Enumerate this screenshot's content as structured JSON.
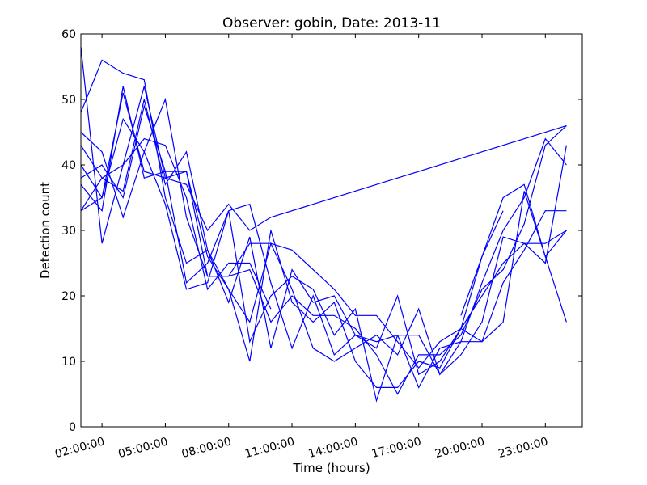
{
  "chart_data": {
    "type": "line",
    "title": "Observer: gobin, Date: 2013-11",
    "xlabel": "Time (hours)",
    "ylabel": "Detection count",
    "xlim": [
      1.0,
      24.75
    ],
    "ylim": [
      0,
      60
    ],
    "x_ticks": [
      {
        "value": 2,
        "label": "02:00:00"
      },
      {
        "value": 5,
        "label": "05:00:00"
      },
      {
        "value": 8,
        "label": "08:00:00"
      },
      {
        "value": 11,
        "label": "11:00:00"
      },
      {
        "value": 14,
        "label": "14:00:00"
      },
      {
        "value": 17,
        "label": "17:00:00"
      },
      {
        "value": 20,
        "label": "20:00:00"
      },
      {
        "value": 23,
        "label": "23:00:00"
      }
    ],
    "y_ticks": [
      0,
      10,
      20,
      30,
      40,
      50,
      60
    ],
    "grid": false,
    "line_color": "#0000ff",
    "series": [
      {
        "x": [
          1,
          2,
          3,
          4,
          5,
          6,
          7,
          8,
          9,
          10,
          11,
          12,
          13,
          14,
          15,
          16,
          17,
          18,
          19,
          20,
          21,
          22,
          23,
          24
        ],
        "y": [
          58,
          28,
          40,
          52,
          38,
          39,
          26,
          21,
          16,
          28,
          21,
          12,
          10,
          12,
          14,
          11,
          18,
          8,
          13,
          22,
          30,
          35,
          44,
          40
        ]
      },
      {
        "x": [
          1,
          2,
          3,
          4,
          5,
          6,
          7,
          8,
          9,
          10,
          11,
          12,
          13,
          14,
          15,
          16,
          17,
          18,
          19,
          20,
          21,
          22,
          23,
          24
        ],
        "y": [
          48,
          56,
          54,
          53,
          35,
          25,
          27,
          19,
          29,
          12,
          24,
          19,
          20,
          14,
          12,
          20,
          8,
          10,
          15,
          26,
          35,
          37,
          26,
          30
        ]
      },
      {
        "x": [
          1,
          2,
          3,
          4,
          5,
          6,
          7,
          8,
          9,
          10,
          11,
          12,
          13,
          14,
          15,
          16,
          17,
          18,
          19,
          20,
          21,
          22,
          23,
          24
        ],
        "y": [
          45,
          42,
          32,
          42,
          50,
          32,
          23,
          23,
          24,
          16,
          20,
          17,
          17,
          15,
          11,
          5,
          11,
          11,
          14,
          21,
          24,
          31,
          43,
          46
        ]
      },
      {
        "x": [
          1,
          2,
          3,
          4,
          5,
          6,
          7,
          8,
          9,
          10,
          11,
          12,
          13,
          14,
          15,
          16,
          17,
          18,
          19,
          20,
          21,
          22,
          23,
          24
        ],
        "y": [
          37,
          33,
          52,
          38,
          39,
          22,
          25,
          33,
          34,
          22,
          12,
          20,
          11,
          14,
          13,
          14,
          6,
          12,
          13,
          13,
          22,
          27,
          33,
          33
        ]
      },
      {
        "x": [
          1,
          2,
          3,
          4,
          5,
          6,
          7,
          8,
          9,
          10,
          11,
          12,
          13,
          14,
          15,
          16,
          17,
          18,
          19,
          20,
          21,
          22,
          23,
          24
        ],
        "y": [
          33,
          38,
          36,
          50,
          37,
          42,
          27,
          21,
          10,
          30,
          19,
          16,
          19,
          10,
          6,
          6,
          10,
          9,
          15,
          13,
          16,
          36,
          26,
          16
        ]
      },
      {
        "x": [
          1,
          2,
          3,
          4,
          5,
          6,
          7,
          8,
          9,
          10
        ],
        "y": [
          43,
          38,
          40,
          44,
          43,
          35,
          21,
          25,
          25,
          18
        ]
      },
      {
        "x": [
          1,
          2,
          3,
          4,
          5,
          6,
          7,
          8,
          9,
          10,
          24
        ],
        "y": [
          33,
          35,
          51,
          39,
          38,
          37,
          30,
          34,
          30,
          32,
          46
        ]
      },
      {
        "x": [
          1,
          2,
          3,
          4,
          5,
          6,
          7,
          8,
          9,
          10,
          11,
          12,
          13,
          14,
          15,
          16,
          17,
          18,
          19,
          20,
          21,
          22,
          23,
          24
        ],
        "y": [
          38,
          40,
          35,
          49,
          39,
          39,
          23,
          23,
          28,
          28,
          27,
          24,
          21,
          17,
          17,
          13,
          9,
          13,
          15,
          20,
          25,
          28,
          28,
          30
        ]
      },
      {
        "x": [
          1,
          2,
          3,
          4,
          5,
          6,
          7,
          8,
          9,
          10,
          11,
          12,
          13,
          14,
          15,
          16,
          17,
          18,
          19,
          20,
          21,
          22,
          23,
          24
        ],
        "y": [
          40,
          35,
          47,
          42,
          34,
          21,
          22,
          33,
          13,
          20,
          23,
          21,
          14,
          18,
          4,
          14,
          14,
          8,
          11,
          16,
          29,
          28,
          25,
          43
        ]
      },
      {
        "x": [
          19,
          20,
          21
        ],
        "y": [
          17,
          26,
          33
        ]
      }
    ]
  }
}
